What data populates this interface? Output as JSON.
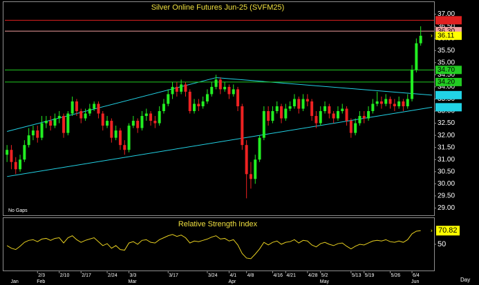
{
  "chart_data": [
    {
      "type": "candlestick",
      "title": "Silver Online Futures Jun-25 (SVFM25)",
      "annotations": [
        "No Gaps"
      ],
      "x_label": "Day",
      "categories": [
        null,
        null,
        null,
        null,
        null,
        null,
        null,
        "2/3",
        null,
        null,
        null,
        null,
        "2/10",
        null,
        null,
        null,
        null,
        "2/17",
        null,
        null,
        null,
        null,
        null,
        "2/24",
        null,
        null,
        null,
        null,
        "3/3",
        null,
        null,
        null,
        null,
        null,
        null,
        null,
        null,
        "3/17",
        null,
        null,
        null,
        null,
        null,
        null,
        null,
        null,
        "3/24",
        null,
        null,
        null,
        null,
        "4/1",
        null,
        null,
        null,
        "4/8",
        null,
        null,
        null,
        null,
        null,
        "4/16",
        null,
        null,
        "4/21",
        null,
        null,
        null,
        null,
        "4/28",
        null,
        null,
        "5/2",
        null,
        null,
        null,
        null,
        null,
        null,
        "5/13",
        null,
        null,
        "5/19",
        null,
        null,
        null,
        null,
        null,
        "5/26",
        null,
        null,
        null,
        null,
        "6/4",
        null,
        null
      ],
      "months": [
        null,
        "Jan",
        null,
        null,
        null,
        null,
        null,
        "Feb",
        null,
        null,
        null,
        null,
        null,
        null,
        null,
        null,
        null,
        null,
        null,
        null,
        null,
        null,
        null,
        null,
        null,
        null,
        null,
        null,
        "Mar",
        null,
        null,
        null,
        null,
        null,
        null,
        null,
        null,
        null,
        null,
        null,
        null,
        null,
        null,
        null,
        null,
        null,
        null,
        null,
        null,
        null,
        null,
        "Apr",
        null,
        null,
        null,
        null,
        null,
        null,
        null,
        null,
        null,
        null,
        null,
        null,
        null,
        null,
        null,
        null,
        null,
        null,
        null,
        null,
        "May",
        null,
        null,
        null,
        null,
        null,
        null,
        null,
        null,
        null,
        null,
        null,
        null,
        null,
        null,
        null,
        null,
        null,
        null,
        null,
        null,
        "Jun",
        null,
        null
      ],
      "open": [
        31.2,
        31.4,
        30.9,
        30.6,
        31.0,
        31.6,
        32.0,
        32.2,
        31.9,
        32.5,
        32.6,
        32.4,
        32.7,
        32.8,
        32.1,
        32.9,
        33.4,
        33.0,
        32.7,
        32.9,
        33.1,
        33.3,
        32.9,
        32.4,
        32.6,
        31.9,
        32.2,
        31.6,
        31.4,
        32.4,
        32.6,
        32.3,
        32.8,
        32.9,
        32.6,
        32.5,
        33.0,
        33.3,
        33.7,
        34.0,
        33.8,
        34.1,
        33.8,
        33.0,
        33.3,
        33.2,
        33.4,
        33.7,
        34.0,
        34.3,
        33.9,
        34.0,
        33.7,
        33.9,
        33.2,
        31.6,
        30.4,
        30.2,
        31.0,
        31.9,
        33.0,
        32.6,
        33.0,
        33.2,
        32.7,
        33.1,
        33.2,
        33.5,
        33.1,
        33.5,
        33.4,
        32.8,
        32.5,
        33.0,
        33.2,
        32.9,
        32.7,
        33.0,
        33.1,
        32.6,
        32.1,
        32.5,
        32.8,
        32.7,
        33.0,
        33.3,
        33.4,
        33.3,
        33.5,
        33.3,
        33.2,
        33.4,
        33.2,
        33.5,
        34.7,
        35.8
      ],
      "high": [
        31.6,
        31.6,
        31.1,
        31.2,
        31.8,
        32.3,
        32.4,
        32.4,
        32.8,
        32.8,
        32.8,
        32.9,
        33.0,
        32.9,
        33.0,
        33.6,
        33.5,
        33.1,
        33.1,
        33.3,
        33.4,
        33.4,
        33.0,
        32.8,
        32.7,
        32.4,
        32.3,
        31.8,
        32.5,
        32.8,
        32.7,
        33.0,
        33.1,
        33.0,
        32.8,
        33.2,
        33.5,
        33.9,
        34.2,
        34.2,
        34.3,
        34.2,
        33.9,
        33.5,
        33.5,
        33.6,
        33.9,
        34.2,
        34.5,
        34.4,
        34.2,
        34.1,
        34.1,
        34.0,
        33.3,
        31.8,
        30.9,
        31.2,
        32.0,
        33.2,
        33.2,
        33.2,
        33.4,
        33.3,
        33.3,
        33.4,
        33.7,
        33.6,
        33.7,
        33.7,
        33.5,
        33.0,
        33.2,
        33.4,
        33.3,
        33.0,
        33.2,
        33.3,
        33.2,
        32.7,
        32.7,
        33.0,
        33.0,
        33.2,
        33.5,
        33.8,
        33.6,
        33.7,
        33.6,
        33.5,
        33.6,
        33.5,
        33.7,
        34.9,
        36.0,
        36.5
      ],
      "low": [
        30.9,
        30.6,
        30.4,
        30.5,
        30.9,
        31.5,
        31.8,
        31.7,
        31.8,
        32.3,
        32.2,
        32.3,
        32.5,
        31.9,
        32.0,
        32.8,
        32.8,
        32.5,
        32.6,
        32.8,
        33.0,
        32.7,
        32.2,
        32.3,
        31.7,
        31.8,
        31.4,
        31.2,
        31.3,
        32.3,
        32.1,
        32.2,
        32.6,
        32.4,
        32.3,
        32.4,
        32.9,
        33.2,
        33.5,
        33.6,
        33.7,
        33.6,
        32.9,
        32.9,
        33.0,
        33.1,
        33.3,
        33.6,
        33.9,
        33.7,
        33.8,
        33.5,
        33.6,
        33.0,
        31.4,
        29.4,
        29.8,
        30.0,
        30.9,
        31.8,
        32.4,
        32.5,
        32.9,
        32.5,
        32.6,
        33.0,
        33.1,
        32.9,
        33.0,
        33.2,
        32.6,
        32.3,
        32.4,
        32.9,
        32.7,
        32.5,
        32.6,
        32.9,
        32.4,
        31.9,
        32.0,
        32.4,
        32.5,
        32.6,
        32.9,
        33.2,
        33.1,
        33.2,
        33.1,
        33.0,
        33.1,
        33.0,
        33.1,
        33.4,
        34.6,
        35.7
      ],
      "close": [
        31.4,
        30.9,
        30.6,
        31.0,
        31.6,
        32.0,
        32.2,
        31.9,
        32.5,
        32.6,
        32.4,
        32.7,
        32.8,
        32.1,
        32.9,
        33.4,
        33.0,
        32.7,
        32.9,
        33.1,
        33.3,
        32.9,
        32.4,
        32.6,
        31.9,
        32.2,
        31.6,
        31.4,
        32.4,
        32.6,
        32.3,
        32.8,
        32.9,
        32.6,
        32.5,
        33.0,
        33.3,
        33.7,
        34.0,
        33.8,
        34.1,
        33.8,
        33.0,
        33.3,
        33.2,
        33.4,
        33.7,
        34.0,
        34.3,
        33.9,
        34.0,
        33.7,
        33.9,
        33.2,
        31.6,
        30.4,
        30.2,
        31.0,
        31.9,
        33.0,
        32.6,
        33.0,
        33.2,
        32.7,
        33.1,
        33.2,
        33.5,
        33.1,
        33.5,
        33.4,
        32.8,
        32.5,
        33.0,
        33.2,
        32.9,
        32.7,
        33.0,
        33.1,
        32.6,
        32.1,
        32.5,
        32.8,
        32.7,
        33.0,
        33.3,
        33.4,
        33.3,
        33.5,
        33.3,
        33.2,
        33.4,
        33.2,
        33.5,
        34.7,
        35.8,
        36.11
      ],
      "up_color": "#22ee22",
      "down_color": "#ee2222",
      "last_color": "#ffff00",
      "ylim": [
        28.7,
        37.5
      ],
      "yticks": [
        {
          "value": 29,
          "label": "29.00"
        },
        {
          "value": 29.5,
          "label": "29.50"
        },
        {
          "value": 30,
          "label": "30.00"
        },
        {
          "value": 30.5,
          "label": "30.50"
        },
        {
          "value": 31,
          "label": "31.00"
        },
        {
          "value": 31.5,
          "label": "31.50"
        },
        {
          "value": 32,
          "label": "32.00"
        },
        {
          "value": 32.5,
          "label": "32.50"
        },
        {
          "value": 33,
          "label": "33.00"
        },
        {
          "value": 33.5,
          "label": "33.50"
        },
        {
          "value": 34,
          "label": "34.00"
        },
        {
          "value": 34.5,
          "label": "34.50"
        },
        {
          "value": 35,
          "label": "35.00"
        },
        {
          "value": 35.5,
          "label": "35.50"
        },
        {
          "value": 36,
          "label": "36.00"
        },
        {
          "value": 36.5,
          "label": "36.50"
        },
        {
          "value": 37,
          "label": "37.00"
        }
      ],
      "grid": false,
      "price_levels": [
        {
          "value": 36.75,
          "color": "#e02020",
          "line": true
        },
        {
          "value": 36.3,
          "label": "36.30",
          "color": "#f4a0a0",
          "line": true
        },
        {
          "value": 34.7,
          "label": "34.70",
          "color": "#22cc22",
          "line": true
        },
        {
          "value": 34.2,
          "label": "34.20",
          "color": "#22cc22",
          "line": true
        },
        {
          "value": 33.66,
          "color": "#22d3e6",
          "line": false
        },
        {
          "value": 33.16,
          "color": "#22d3e6",
          "line": false
        }
      ],
      "trendlines": [
        {
          "color": "#22d3e6",
          "x": [
            0,
            48
          ],
          "y": [
            32.16,
            34.38
          ]
        },
        {
          "color": "#22d3e6",
          "x": [
            48,
            97.6
          ],
          "y": [
            34.38,
            33.66
          ]
        },
        {
          "color": "#22d3e6",
          "x": [
            0,
            97.6
          ],
          "y": [
            30.3,
            33.16
          ]
        }
      ]
    },
    {
      "type": "line",
      "title": "Relative Strength Index",
      "color": "#e8d020",
      "values": [
        48,
        44,
        42,
        47,
        53,
        56,
        57,
        54,
        58,
        59,
        56,
        59,
        60,
        52,
        60,
        63,
        57,
        53,
        56,
        58,
        60,
        54,
        48,
        51,
        44,
        48,
        42,
        41,
        52,
        54,
        50,
        56,
        57,
        53,
        52,
        57,
        60,
        63,
        65,
        62,
        64,
        60,
        52,
        55,
        54,
        56,
        58,
        61,
        63,
        58,
        59,
        55,
        57,
        49,
        36,
        29,
        28,
        35,
        43,
        53,
        49,
        53,
        55,
        50,
        53,
        54,
        57,
        52,
        56,
        55,
        49,
        46,
        51,
        53,
        50,
        48,
        51,
        52,
        47,
        43,
        47,
        50,
        49,
        52,
        55,
        56,
        55,
        57,
        54,
        53,
        55,
        53,
        57,
        66,
        70,
        70.82
      ],
      "ylim": [
        10,
        90
      ],
      "yticks": [
        50
      ],
      "last_color": "#ffff00"
    }
  ]
}
